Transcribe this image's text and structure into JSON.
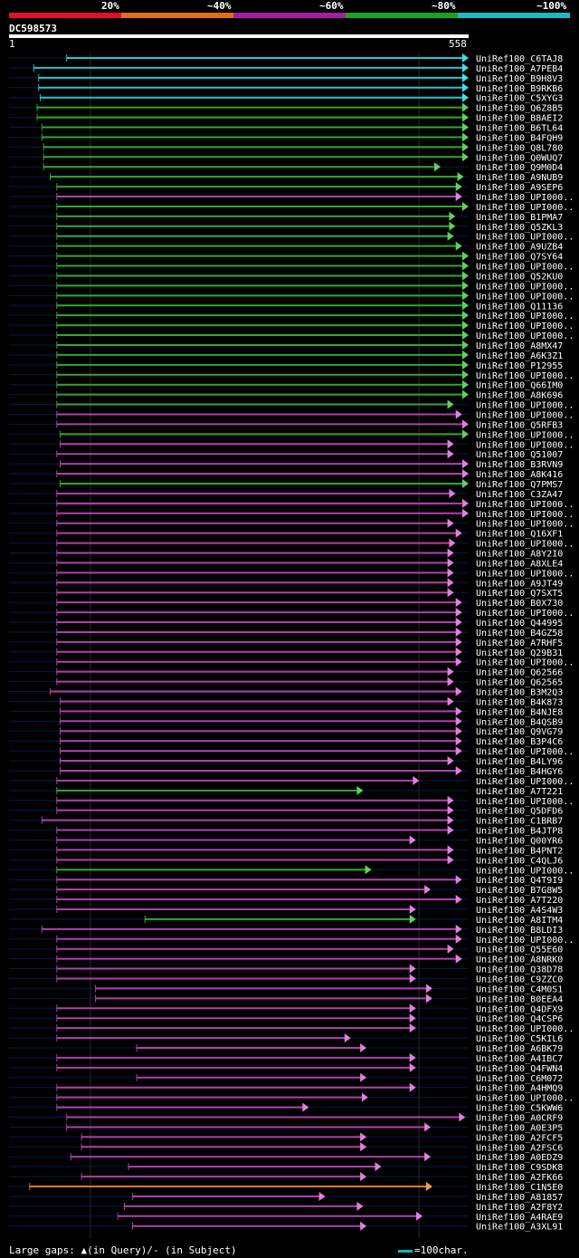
{
  "legend": [
    {
      "label": "20%",
      "color": "#e0102a"
    },
    {
      "label": "~40%",
      "color": "#e07010"
    },
    {
      "label": "~60%",
      "color": "#a020a0"
    },
    {
      "label": "~80%",
      "color": "#20a020"
    },
    {
      "label": "~100%",
      "color": "#20b8c0"
    }
  ],
  "query": {
    "id": "DC598573",
    "start_label": "1",
    "end_label": "558"
  },
  "footer": {
    "gaps_text": "Large gaps: ▲(in Query)/- (in Subject)",
    "scale_text": "=100char."
  },
  "chart_data": {
    "type": "alignment",
    "query_length": 558,
    "hits": [
      {
        "name": "UniRef100_C6TAJ8",
        "start": 70,
        "end": 558,
        "color": "cyan"
      },
      {
        "name": "UniRef100_A7PEB4",
        "start": 30,
        "end": 558,
        "color": "cyan"
      },
      {
        "name": "UniRef100_B9H8V3",
        "start": 36,
        "end": 558,
        "color": "cyan"
      },
      {
        "name": "UniRef100_B9RKB6",
        "start": 36,
        "end": 558,
        "color": "cyan"
      },
      {
        "name": "UniRef100_C5XYG3",
        "start": 38,
        "end": 558,
        "color": "cyan"
      },
      {
        "name": "UniRef100_Q6Z8B5",
        "start": 34,
        "end": 558,
        "color": "green"
      },
      {
        "name": "UniRef100_B8AEI2",
        "start": 34,
        "end": 558,
        "color": "green"
      },
      {
        "name": "UniRef100_B6TL64",
        "start": 40,
        "end": 558,
        "color": "green"
      },
      {
        "name": "UniRef100_B4FQH9",
        "start": 40,
        "end": 558,
        "color": "green"
      },
      {
        "name": "UniRef100_Q8L780",
        "start": 42,
        "end": 558,
        "color": "green"
      },
      {
        "name": "UniRef100_Q0WUQ7",
        "start": 42,
        "end": 558,
        "color": "green"
      },
      {
        "name": "UniRef100_Q9M0D4",
        "start": 42,
        "end": 524,
        "color": "green"
      },
      {
        "name": "UniRef100_A9NUB9",
        "start": 50,
        "end": 552,
        "color": "green"
      },
      {
        "name": "UniRef100_A9SEP6",
        "start": 58,
        "end": 550,
        "color": "green"
      },
      {
        "name": "UniRef100_UPI000..",
        "start": 58,
        "end": 550,
        "color": "purple"
      },
      {
        "name": "UniRef100_UPI000..",
        "start": 58,
        "end": 558,
        "color": "green"
      },
      {
        "name": "UniRef100_B1PMA7",
        "start": 58,
        "end": 542,
        "color": "green"
      },
      {
        "name": "UniRef100_Q5ZKL3",
        "start": 58,
        "end": 542,
        "color": "green"
      },
      {
        "name": "UniRef100_UPI000..",
        "start": 58,
        "end": 540,
        "color": "green"
      },
      {
        "name": "UniRef100_A9UZB4",
        "start": 58,
        "end": 550,
        "color": "green"
      },
      {
        "name": "UniRef100_Q7SY64",
        "start": 58,
        "end": 558,
        "color": "green"
      },
      {
        "name": "UniRef100_UPI000..",
        "start": 58,
        "end": 558,
        "color": "green"
      },
      {
        "name": "UniRef100_Q52KU0",
        "start": 58,
        "end": 558,
        "color": "green"
      },
      {
        "name": "UniRef100_UPI000..",
        "start": 58,
        "end": 558,
        "color": "green"
      },
      {
        "name": "UniRef100_UPI000..",
        "start": 58,
        "end": 558,
        "color": "green"
      },
      {
        "name": "UniRef100_Q11136",
        "start": 58,
        "end": 558,
        "color": "green"
      },
      {
        "name": "UniRef100_UPI000..",
        "start": 58,
        "end": 558,
        "color": "green"
      },
      {
        "name": "UniRef100_UPI000..",
        "start": 58,
        "end": 558,
        "color": "green"
      },
      {
        "name": "UniRef100_UPI000..",
        "start": 58,
        "end": 558,
        "color": "green"
      },
      {
        "name": "UniRef100_A8MX47",
        "start": 58,
        "end": 558,
        "color": "green"
      },
      {
        "name": "UniRef100_A6K3Z1",
        "start": 58,
        "end": 558,
        "color": "green"
      },
      {
        "name": "UniRef100_P12955",
        "start": 58,
        "end": 558,
        "color": "green"
      },
      {
        "name": "UniRef100_UPI000..",
        "start": 58,
        "end": 558,
        "color": "green"
      },
      {
        "name": "UniRef100_Q66IM0",
        "start": 58,
        "end": 558,
        "color": "green"
      },
      {
        "name": "UniRef100_A8K696",
        "start": 58,
        "end": 558,
        "color": "green"
      },
      {
        "name": "UniRef100_UPI000..",
        "start": 58,
        "end": 540,
        "color": "green"
      },
      {
        "name": "UniRef100_UPI000..",
        "start": 58,
        "end": 550,
        "color": "purple"
      },
      {
        "name": "UniRef100_Q5RFB3",
        "start": 58,
        "end": 558,
        "color": "purple"
      },
      {
        "name": "UniRef100_UPI000..",
        "start": 62,
        "end": 558,
        "color": "green"
      },
      {
        "name": "UniRef100_UPI000..",
        "start": 62,
        "end": 540,
        "color": "purple"
      },
      {
        "name": "UniRef100_Q51007",
        "start": 58,
        "end": 540,
        "color": "purple"
      },
      {
        "name": "UniRef100_B3RVN9",
        "start": 62,
        "end": 558,
        "color": "purple"
      },
      {
        "name": "UniRef100_A8K416",
        "start": 58,
        "end": 558,
        "color": "purple"
      },
      {
        "name": "UniRef100_Q7PMS7",
        "start": 62,
        "end": 558,
        "color": "green"
      },
      {
        "name": "UniRef100_C3ZA47",
        "start": 58,
        "end": 542,
        "color": "purple"
      },
      {
        "name": "UniRef100_UPI000..",
        "start": 58,
        "end": 558,
        "color": "purple"
      },
      {
        "name": "UniRef100_UPI000..",
        "start": 58,
        "end": 558,
        "color": "purple"
      },
      {
        "name": "UniRef100_UPI000..",
        "start": 58,
        "end": 540,
        "color": "purple"
      },
      {
        "name": "UniRef100_Q16XF1",
        "start": 58,
        "end": 550,
        "color": "purple"
      },
      {
        "name": "UniRef100_UPI000..",
        "start": 58,
        "end": 542,
        "color": "purple"
      },
      {
        "name": "UniRef100_A8Y2I0",
        "start": 58,
        "end": 540,
        "color": "purple"
      },
      {
        "name": "UniRef100_A8XLE4",
        "start": 58,
        "end": 540,
        "color": "purple"
      },
      {
        "name": "UniRef100_UPI000..",
        "start": 58,
        "end": 540,
        "color": "purple"
      },
      {
        "name": "UniRef100_A9JT49",
        "start": 58,
        "end": 540,
        "color": "purple"
      },
      {
        "name": "UniRef100_Q7SXT5",
        "start": 58,
        "end": 540,
        "color": "purple"
      },
      {
        "name": "UniRef100_B0X730",
        "start": 58,
        "end": 550,
        "color": "purple"
      },
      {
        "name": "UniRef100_UPI000..",
        "start": 58,
        "end": 550,
        "color": "purple"
      },
      {
        "name": "UniRef100_Q44995",
        "start": 58,
        "end": 550,
        "color": "purple"
      },
      {
        "name": "UniRef100_B4GZ58",
        "start": 58,
        "end": 550,
        "color": "purple"
      },
      {
        "name": "UniRef100_A7RHF5",
        "start": 58,
        "end": 550,
        "color": "purple"
      },
      {
        "name": "UniRef100_Q29B31",
        "start": 58,
        "end": 550,
        "color": "purple"
      },
      {
        "name": "UniRef100_UPI000..",
        "start": 58,
        "end": 550,
        "color": "purple"
      },
      {
        "name": "UniRef100_Q62566",
        "start": 58,
        "end": 540,
        "color": "purple"
      },
      {
        "name": "UniRef100_Q62565",
        "start": 58,
        "end": 540,
        "color": "purple"
      },
      {
        "name": "UniRef100_B3M2Q3",
        "start": 50,
        "end": 550,
        "color": "purple"
      },
      {
        "name": "UniRef100_B4K873",
        "start": 62,
        "end": 540,
        "color": "purple"
      },
      {
        "name": "UniRef100_B4NJE8",
        "start": 62,
        "end": 550,
        "color": "purple"
      },
      {
        "name": "UniRef100_B4QSB9",
        "start": 62,
        "end": 550,
        "color": "purple"
      },
      {
        "name": "UniRef100_Q9VG79",
        "start": 62,
        "end": 550,
        "color": "purple"
      },
      {
        "name": "UniRef100_B3P4C6",
        "start": 62,
        "end": 550,
        "color": "purple"
      },
      {
        "name": "UniRef100_UPI000..",
        "start": 62,
        "end": 550,
        "color": "purple"
      },
      {
        "name": "UniRef100_B4LY96",
        "start": 62,
        "end": 540,
        "color": "purple"
      },
      {
        "name": "UniRef100_B4HGY6",
        "start": 62,
        "end": 550,
        "color": "purple"
      },
      {
        "name": "UniRef100_UPI000..",
        "start": 58,
        "end": 498,
        "color": "purple"
      },
      {
        "name": "UniRef100_A7T221",
        "start": 58,
        "end": 430,
        "color": "green"
      },
      {
        "name": "UniRef100_UPI000..",
        "start": 58,
        "end": 540,
        "color": "purple"
      },
      {
        "name": "UniRef100_Q5DFD6",
        "start": 58,
        "end": 540,
        "color": "purple"
      },
      {
        "name": "UniRef100_C1BRB7",
        "start": 40,
        "end": 540,
        "color": "purple"
      },
      {
        "name": "UniRef100_B4JTP8",
        "start": 58,
        "end": 540,
        "color": "purple"
      },
      {
        "name": "UniRef100_Q00YR6",
        "start": 58,
        "end": 494,
        "color": "purple"
      },
      {
        "name": "UniRef100_B4PNT2",
        "start": 58,
        "end": 540,
        "color": "purple"
      },
      {
        "name": "UniRef100_C4QLJ6",
        "start": 58,
        "end": 540,
        "color": "purple"
      },
      {
        "name": "UniRef100_UPI000..",
        "start": 58,
        "end": 440,
        "color": "green"
      },
      {
        "name": "UniRef100_Q4T9I9",
        "start": 58,
        "end": 550,
        "color": "purple"
      },
      {
        "name": "UniRef100_B7G8W5",
        "start": 58,
        "end": 512,
        "color": "purple"
      },
      {
        "name": "UniRef100_A7T220",
        "start": 58,
        "end": 550,
        "color": "purple"
      },
      {
        "name": "UniRef100_A4S4W3",
        "start": 58,
        "end": 494,
        "color": "purple"
      },
      {
        "name": "UniRef100_A8ITM4",
        "start": 165,
        "end": 494,
        "color": "green"
      },
      {
        "name": "UniRef100_B8LDI3",
        "start": 40,
        "end": 550,
        "color": "purple"
      },
      {
        "name": "UniRef100_UPI000..",
        "start": 58,
        "end": 550,
        "color": "purple"
      },
      {
        "name": "UniRef100_Q55E60",
        "start": 58,
        "end": 540,
        "color": "purple"
      },
      {
        "name": "UniRef100_A8NRK0",
        "start": 58,
        "end": 550,
        "color": "purple"
      },
      {
        "name": "UniRef100_Q38D78",
        "start": 58,
        "end": 494,
        "color": "purple"
      },
      {
        "name": "UniRef100_C9ZZC0",
        "start": 58,
        "end": 494,
        "color": "purple"
      },
      {
        "name": "UniRef100_C4M0S1",
        "start": 105,
        "end": 514,
        "color": "purple"
      },
      {
        "name": "UniRef100_B0EEA4",
        "start": 105,
        "end": 514,
        "color": "purple"
      },
      {
        "name": "UniRef100_Q4DFX9",
        "start": 58,
        "end": 494,
        "color": "purple"
      },
      {
        "name": "UniRef100_Q4CSP6",
        "start": 58,
        "end": 494,
        "color": "purple"
      },
      {
        "name": "UniRef100_UPI000..",
        "start": 58,
        "end": 494,
        "color": "purple"
      },
      {
        "name": "UniRef100_C5KIL6",
        "start": 58,
        "end": 415,
        "color": "purple"
      },
      {
        "name": "UniRef100_A6BK79",
        "start": 155,
        "end": 434,
        "color": "purple"
      },
      {
        "name": "UniRef100_A4IBC7",
        "start": 58,
        "end": 494,
        "color": "purple"
      },
      {
        "name": "UniRef100_Q4FWN4",
        "start": 58,
        "end": 494,
        "color": "purple"
      },
      {
        "name": "UniRef100_C6M072",
        "start": 155,
        "end": 434,
        "color": "purple"
      },
      {
        "name": "UniRef100_A4HMQ9",
        "start": 58,
        "end": 494,
        "color": "purple"
      },
      {
        "name": "UniRef100_UPI000..",
        "start": 58,
        "end": 436,
        "color": "purple"
      },
      {
        "name": "UniRef100_C5KWW6",
        "start": 58,
        "end": 364,
        "color": "purple"
      },
      {
        "name": "UniRef100_A0CRF9",
        "start": 70,
        "end": 554,
        "color": "purple"
      },
      {
        "name": "UniRef100_A0E3P5",
        "start": 70,
        "end": 512,
        "color": "purple"
      },
      {
        "name": "UniRef100_A2FCF5",
        "start": 88,
        "end": 434,
        "color": "purple"
      },
      {
        "name": "UniRef100_A2FSC6",
        "start": 88,
        "end": 434,
        "color": "purple"
      },
      {
        "name": "UniRef100_A0EDZ9",
        "start": 75,
        "end": 512,
        "color": "purple"
      },
      {
        "name": "UniRef100_C9SDK8",
        "start": 145,
        "end": 452,
        "color": "purple"
      },
      {
        "name": "UniRef100_A2FK66",
        "start": 88,
        "end": 434,
        "color": "purple"
      },
      {
        "name": "UniRef100_C1N5E0",
        "start": 25,
        "end": 514,
        "color": "orange"
      },
      {
        "name": "UniRef100_A81857",
        "start": 150,
        "end": 384,
        "color": "purple"
      },
      {
        "name": "UniRef100_A2F8Y2",
        "start": 140,
        "end": 430,
        "color": "purple"
      },
      {
        "name": "UniRef100_A4RAE9",
        "start": 132,
        "end": 502,
        "color": "purple"
      },
      {
        "name": "UniRef100_A3XL91",
        "start": 150,
        "end": 434,
        "color": "purple"
      }
    ]
  }
}
